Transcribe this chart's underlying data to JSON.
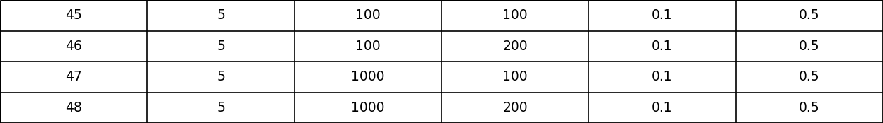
{
  "rows": [
    [
      "45",
      "5",
      "100",
      "100",
      "0.1",
      "0.5"
    ],
    [
      "46",
      "5",
      "100",
      "200",
      "0.1",
      "0.5"
    ],
    [
      "47",
      "5",
      "1000",
      "100",
      "0.1",
      "0.5"
    ],
    [
      "48",
      "5",
      "1000",
      "200",
      "0.1",
      "0.5"
    ]
  ],
  "n_cols": 6,
  "n_rows": 4,
  "background_color": "#ffffff",
  "line_color": "#000000",
  "text_color": "#000000",
  "font_size": 13.5,
  "fig_width": 12.48,
  "fig_height": 1.74,
  "outer_lw": 2.0,
  "inner_lw": 1.2
}
